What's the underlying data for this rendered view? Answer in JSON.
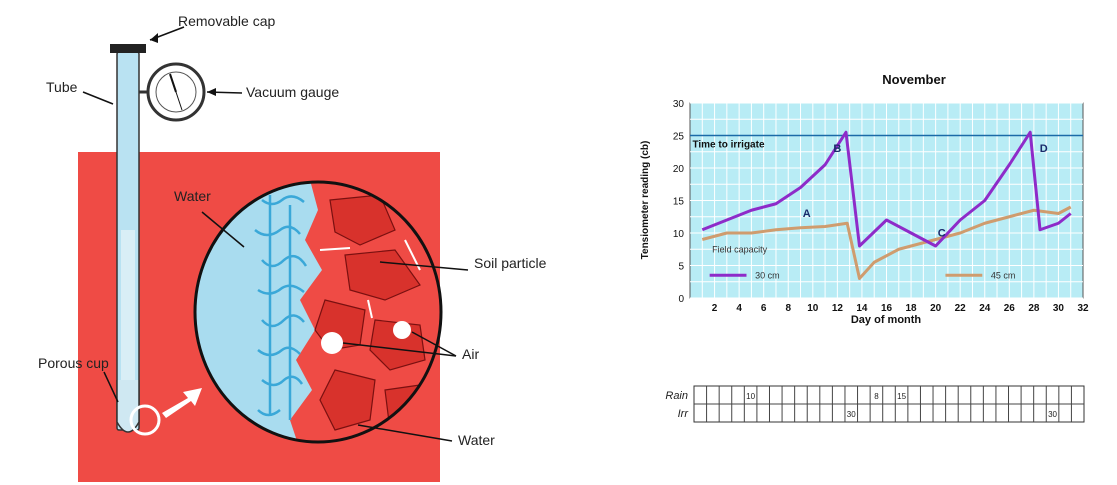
{
  "diagram": {
    "labels": {
      "removable_cap": "Removable cap",
      "tube": "Tube",
      "vacuum_gauge": "Vacuum gauge",
      "water_top": "Water",
      "soil_particle": "Soil particle",
      "air": "Air",
      "porous_cup": "Porous cup",
      "water_bottom": "Water"
    },
    "colors": {
      "soil": "#ef4b45",
      "water": "#a9dcef",
      "tube": "#b9e2f2"
    }
  },
  "chart_data": [
    {
      "type": "line",
      "title": "November",
      "xlabel": "Day of month",
      "ylabel": "Tensiometer reading (cb)",
      "xlim": [
        0,
        32
      ],
      "ylim": [
        0,
        30
      ],
      "xticks": [
        "2",
        "4",
        "6",
        "8",
        "10",
        "12",
        "14",
        "16",
        "18",
        "20",
        "22",
        "24",
        "26",
        "28",
        "30",
        "32"
      ],
      "yticks": [
        "0",
        "5",
        "10",
        "15",
        "20",
        "25",
        "30"
      ],
      "grid": true,
      "background": "#b8ecf5",
      "threshold": {
        "value": 25,
        "label": "Time to irrigate"
      },
      "field_capacity_label": "Field capacity",
      "point_labels": [
        {
          "text": "A",
          "x": 9.5,
          "y": 12.5
        },
        {
          "text": "B",
          "x": 12,
          "y": 22.5
        },
        {
          "text": "C",
          "x": 20.5,
          "y": 9.5
        },
        {
          "text": "D",
          "x": 28.8,
          "y": 22.5
        }
      ],
      "series": [
        {
          "name": "30 cm",
          "color": "#8e2bc9",
          "x": [
            1,
            3,
            5,
            7,
            9,
            11,
            12.7,
            13.8,
            16,
            18,
            20,
            22,
            24,
            26,
            27.7,
            28.5,
            30,
            31
          ],
          "y": [
            10.5,
            12,
            13.5,
            14.5,
            17,
            20.5,
            25.5,
            8,
            12,
            10,
            8,
            12,
            15,
            20.5,
            25.5,
            10.5,
            11.5,
            13
          ]
        },
        {
          "name": "45 cm",
          "color": "#cf9c6e",
          "x": [
            1,
            3,
            5,
            7,
            9,
            11,
            12.8,
            13.8,
            15,
            17,
            19,
            20,
            22,
            24,
            26,
            28,
            30,
            31
          ],
          "y": [
            9,
            10,
            10,
            10.5,
            10.8,
            11,
            11.5,
            3,
            5.5,
            7.5,
            8.5,
            9,
            10,
            11.5,
            12.5,
            13.5,
            13,
            14
          ]
        }
      ]
    },
    {
      "type": "table",
      "rows": [
        {
          "label": "Rain",
          "marks": [
            {
              "day": 5,
              "value": "10"
            },
            {
              "day": 15,
              "value": "8"
            },
            {
              "day": 17,
              "value": "15"
            }
          ]
        },
        {
          "label": "Irr",
          "marks": [
            {
              "day": 13,
              "value": "30"
            },
            {
              "day": 29,
              "value": "30"
            }
          ]
        }
      ]
    }
  ]
}
